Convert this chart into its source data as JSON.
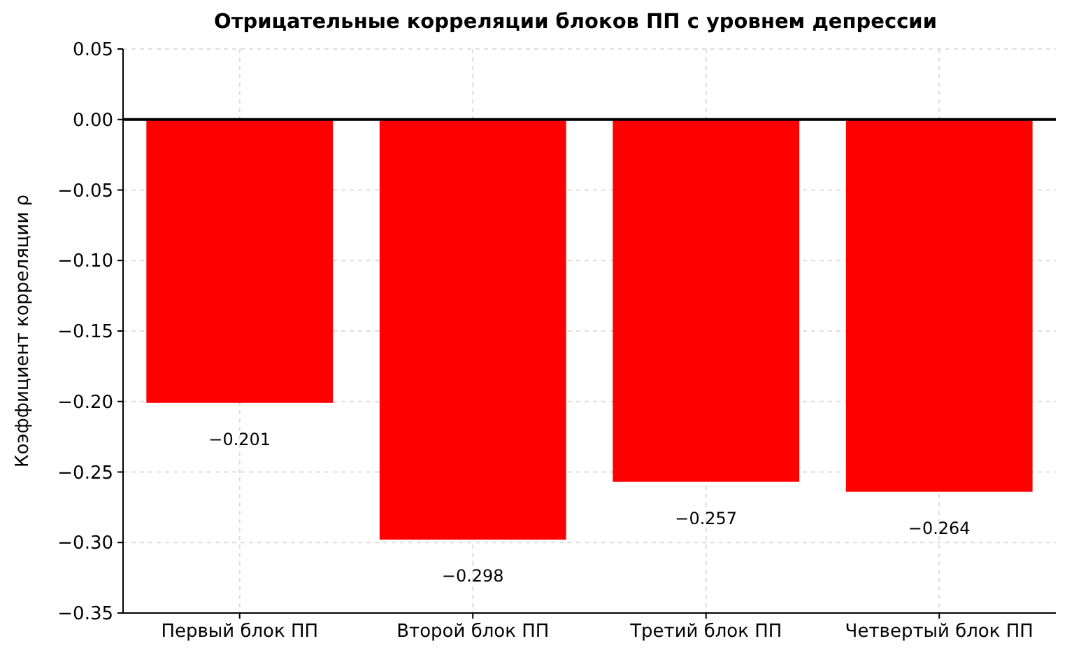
{
  "chart_data": {
    "type": "bar",
    "title": "Отрицательные корреляции блоков ПП с уровнем депрессии",
    "ylabel": "Коэффициент корреляции ρ",
    "categories": [
      "Первый блок ПП",
      "Второй блок ПП",
      "Третий блок ПП",
      "Четвертый блок ПП"
    ],
    "values": [
      -0.201,
      -0.298,
      -0.257,
      -0.264
    ],
    "color": "#ff0000",
    "ylim": [
      -0.35,
      0.05
    ],
    "yticks": [
      {
        "value": -0.35,
        "label": "−0.35"
      },
      {
        "value": -0.3,
        "label": "−0.30"
      },
      {
        "value": -0.25,
        "label": "−0.25"
      },
      {
        "value": -0.2,
        "label": "−0.20"
      },
      {
        "value": -0.15,
        "label": "−0.15"
      },
      {
        "value": -0.1,
        "label": "−0.10"
      },
      {
        "value": -0.05,
        "label": "−0.05"
      },
      {
        "value": 0,
        "label": "0.00"
      },
      {
        "value": 0.05,
        "label": "0.05"
      }
    ],
    "ref_lines": [
      {
        "axis": "y",
        "value": 0,
        "color": "#000000"
      }
    ],
    "data_labels": true,
    "grid": true
  }
}
